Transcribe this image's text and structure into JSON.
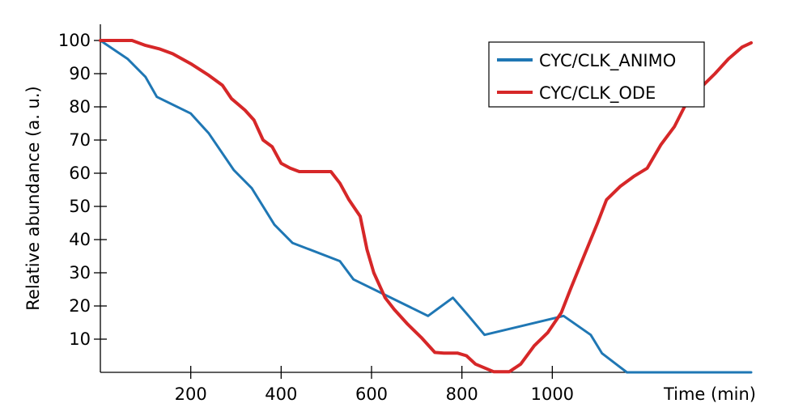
{
  "chart_data": {
    "type": "line",
    "title": "",
    "xlabel": "Time (min)",
    "ylabel": "Relative abundance (a. u.)",
    "xlim": [
      0,
      1440
    ],
    "ylim": [
      0,
      100
    ],
    "x_ticks": [
      200,
      400,
      600,
      800,
      1000
    ],
    "y_ticks": [
      10,
      20,
      30,
      40,
      50,
      60,
      70,
      80,
      90,
      100
    ],
    "grid": false,
    "legend_position": "top-right",
    "series": [
      {
        "name": "CYC/CLK_ANIMO",
        "color": "#1f77b4",
        "x": [
          0,
          60,
          100,
          125,
          200,
          240,
          295,
          335,
          385,
          425,
          530,
          560,
          725,
          780,
          815,
          850,
          1025,
          1085,
          1110,
          1165,
          1440
        ],
        "y": [
          100,
          94.5,
          89,
          83,
          78,
          72,
          61,
          55.5,
          44.5,
          39,
          33.5,
          28,
          17,
          22.5,
          17,
          11.3,
          17,
          11.3,
          5.7,
          0,
          0
        ]
      },
      {
        "name": "CYC/CLK_ODE",
        "color": "#d62728",
        "x": [
          0,
          40,
          70,
          100,
          130,
          160,
          200,
          240,
          270,
          290,
          320,
          340,
          360,
          380,
          400,
          420,
          440,
          460,
          490,
          510,
          530,
          550,
          575,
          590,
          605,
          630,
          650,
          680,
          710,
          740,
          760,
          790,
          810,
          830,
          870,
          905,
          930,
          960,
          990,
          1020,
          1040,
          1070,
          1100,
          1120,
          1150,
          1180,
          1210,
          1240,
          1270,
          1300,
          1330,
          1360,
          1390,
          1420,
          1440
        ],
        "y": [
          100,
          100,
          100,
          98.5,
          97.5,
          96,
          93,
          89.5,
          86.5,
          82.5,
          79,
          76,
          70,
          68,
          63,
          61.5,
          60.5,
          60.5,
          60.5,
          60.5,
          57,
          52,
          47,
          37,
          30,
          22.5,
          19,
          14.5,
          10.5,
          6,
          5.8,
          5.8,
          5,
          2.5,
          0.2,
          0.2,
          2.5,
          8,
          12,
          18,
          25,
          35,
          45,
          52,
          56,
          59,
          61.5,
          68.5,
          74,
          82,
          86,
          90,
          94.5,
          98,
          99.3
        ]
      }
    ]
  }
}
